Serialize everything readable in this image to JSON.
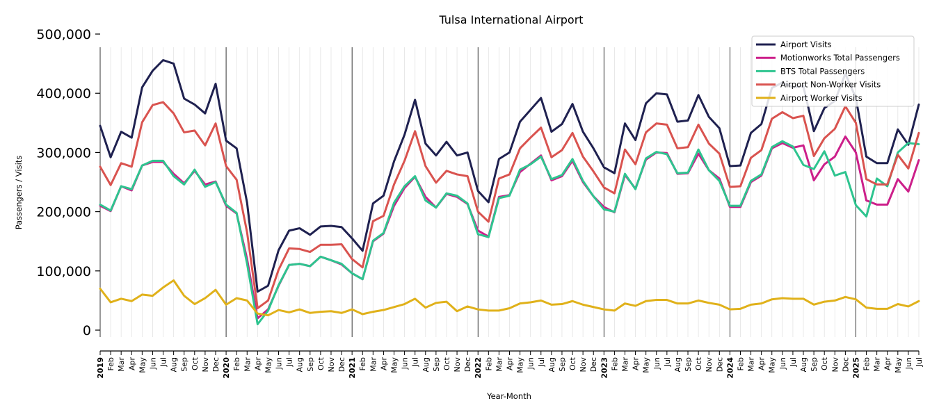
{
  "chart_data": {
    "type": "line",
    "title": "Tulsa International Airport",
    "xlabel": "Year-Month",
    "ylabel": "Passengers / Visits",
    "ylim": [
      0,
      500000
    ],
    "yticks": [
      0,
      100000,
      200000,
      300000,
      400000,
      500000
    ],
    "ytick_labels": [
      "0",
      "100,000",
      "200,000",
      "300,000",
      "400,000",
      "500,000"
    ],
    "grid": "vertical monthly lines, darker at year start",
    "legend_position": "top-right",
    "categories": [
      "2019",
      "Feb",
      "Mar",
      "Apr",
      "May",
      "Jun",
      "Jul",
      "Aug",
      "Sep",
      "Oct",
      "Nov",
      "Dec",
      "2020",
      "Feb",
      "Mar",
      "Apr",
      "May",
      "Jun",
      "Jul",
      "Aug",
      "Sep",
      "Oct",
      "Nov",
      "Dec",
      "2021",
      "Feb",
      "Mar",
      "Apr",
      "May",
      "Jun",
      "Jul",
      "Aug",
      "Sep",
      "Oct",
      "Nov",
      "Dec",
      "2022",
      "Feb",
      "Mar",
      "Apr",
      "May",
      "Jun",
      "Jul",
      "Aug",
      "Sep",
      "Oct",
      "Nov",
      "Dec",
      "2023",
      "Feb",
      "Mar",
      "Apr",
      "May",
      "Jun",
      "Jul",
      "Aug",
      "Sep",
      "Oct",
      "Nov",
      "Dec",
      "2024",
      "Feb",
      "Mar",
      "Apr",
      "May",
      "Jun",
      "Jul",
      "Aug",
      "Sep",
      "Oct",
      "Nov",
      "Dec",
      "2025",
      "Feb",
      "Mar",
      "Apr",
      "May",
      "Jun",
      "Jul"
    ],
    "series": [
      {
        "name": "Airport Visits",
        "color": "#1f2150",
        "values": [
          345000,
          292000,
          335000,
          325000,
          410000,
          438000,
          456000,
          450000,
          391000,
          381000,
          366000,
          416000,
          320000,
          307000,
          215000,
          65000,
          75000,
          135000,
          168000,
          172000,
          161000,
          175000,
          176000,
          174000,
          155000,
          134000,
          214000,
          227000,
          285000,
          330000,
          389000,
          315000,
          295000,
          318000,
          295000,
          300000,
          235000,
          216000,
          289000,
          300000,
          352000,
          372000,
          392000,
          335000,
          348000,
          382000,
          335000,
          307000,
          275000,
          265000,
          349000,
          321000,
          383000,
          400000,
          398000,
          352000,
          354000,
          397000,
          360000,
          341000,
          277000,
          278000,
          333000,
          348000,
          409000,
          418000,
          410000,
          412000,
          336000,
          375000,
          387000,
          433000,
          392000,
          293000,
          282000,
          282000,
          339000,
          313000,
          381000
        ]
      },
      {
        "name": "Motionworks Total Passengers",
        "color": "#cc1f8a",
        "values": [
          210000,
          201000,
          243000,
          236000,
          278000,
          284000,
          284000,
          264000,
          248000,
          269000,
          246000,
          251000,
          210000,
          197000,
          120000,
          20000,
          35000,
          75000,
          110000,
          112000,
          108000,
          124000,
          118000,
          111000,
          96000,
          86000,
          150000,
          163000,
          210000,
          240000,
          259000,
          225000,
          207000,
          230000,
          225000,
          213000,
          168000,
          158000,
          225000,
          228000,
          267000,
          281000,
          295000,
          253000,
          260000,
          286000,
          250000,
          226000,
          208000,
          199000,
          262000,
          239000,
          288000,
          300000,
          299000,
          264000,
          265000,
          298000,
          270000,
          256000,
          208000,
          208000,
          250000,
          261000,
          307000,
          316000,
          308000,
          312000,
          253000,
          280000,
          293000,
          327000,
          300000,
          219000,
          212000,
          212000,
          255000,
          234000,
          287000
        ]
      },
      {
        "name": "BTS Total Passengers",
        "color": "#2ec48f",
        "values": [
          212000,
          202000,
          243000,
          238000,
          278000,
          286000,
          286000,
          260000,
          246000,
          271000,
          242000,
          250000,
          212000,
          198000,
          112000,
          10000,
          33000,
          76000,
          110000,
          112000,
          108000,
          124000,
          118000,
          112000,
          96000,
          86000,
          151000,
          164000,
          215000,
          243000,
          260000,
          219000,
          207000,
          231000,
          227000,
          214000,
          162000,
          157000,
          223000,
          227000,
          271000,
          280000,
          293000,
          255000,
          262000,
          289000,
          252000,
          226000,
          204000,
          200000,
          264000,
          238000,
          290000,
          301000,
          297000,
          265000,
          266000,
          305000,
          270000,
          252000,
          210000,
          210000,
          252000,
          263000,
          309000,
          319000,
          310000,
          279000,
          272000,
          302000,
          261000,
          267000,
          211000,
          192000,
          256000,
          243000,
          300000,
          316000,
          314000
        ]
      },
      {
        "name": "Airport Non-Worker Visits",
        "color": "#d9534f",
        "values": [
          276000,
          245000,
          282000,
          276000,
          351000,
          380000,
          385000,
          366000,
          334000,
          337000,
          312000,
          349000,
          277000,
          254000,
          165000,
          37000,
          50000,
          102000,
          138000,
          137000,
          132000,
          144000,
          144000,
          145000,
          120000,
          106000,
          184000,
          193000,
          246000,
          286000,
          336000,
          277000,
          249000,
          269000,
          263000,
          260000,
          200000,
          183000,
          256000,
          263000,
          307000,
          325000,
          342000,
          292000,
          304000,
          333000,
          293000,
          268000,
          241000,
          231000,
          305000,
          280000,
          334000,
          349000,
          347000,
          307000,
          309000,
          347000,
          315000,
          298000,
          242000,
          243000,
          291000,
          304000,
          357000,
          368000,
          358000,
          362000,
          294000,
          324000,
          340000,
          378000,
          350000,
          255000,
          246000,
          246000,
          296000,
          273000,
          333000
        ]
      },
      {
        "name": "Airport Worker Visits",
        "color": "#e0b11a",
        "values": [
          70000,
          47000,
          53000,
          49000,
          60000,
          58000,
          72000,
          84000,
          58000,
          44000,
          54000,
          68000,
          43000,
          54000,
          50000,
          28000,
          25000,
          34000,
          30000,
          35000,
          29000,
          31000,
          32000,
          29000,
          35000,
          27000,
          31000,
          34000,
          39000,
          44000,
          53000,
          38000,
          46000,
          48000,
          32000,
          40000,
          35000,
          33000,
          33000,
          37000,
          45000,
          47000,
          50000,
          43000,
          44000,
          49000,
          43000,
          39000,
          35000,
          33000,
          45000,
          41000,
          49000,
          51000,
          51000,
          45000,
          45000,
          50000,
          46000,
          43000,
          35000,
          36000,
          43000,
          45000,
          52000,
          54000,
          53000,
          53000,
          43000,
          48000,
          50000,
          56000,
          52000,
          38000,
          36000,
          36000,
          44000,
          40000,
          49000
        ]
      }
    ]
  }
}
